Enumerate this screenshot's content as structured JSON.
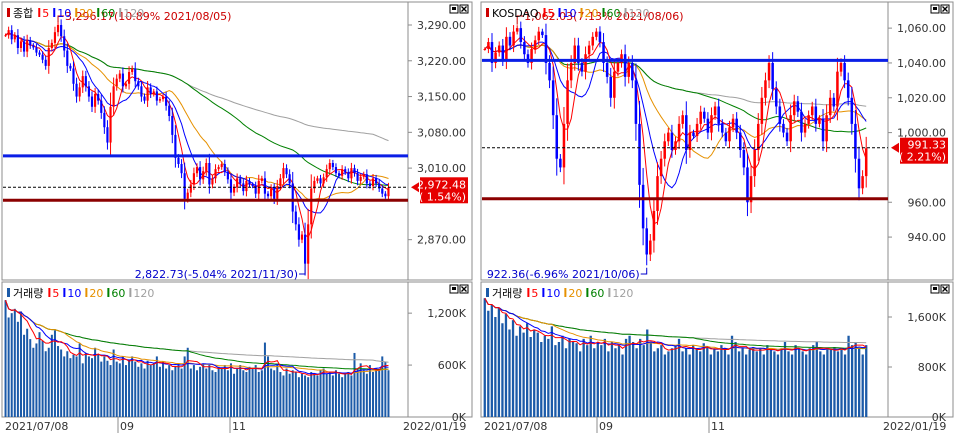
{
  "chart_data": [
    {
      "type": "candlestick",
      "name": "종합",
      "legend": [
        {
          "label": "5",
          "color": "#ff0000"
        },
        {
          "label": "10",
          "color": "#0000ff"
        },
        {
          "label": "20",
          "color": "#e69100"
        },
        {
          "label": "60",
          "color": "#008000"
        },
        {
          "label": "120",
          "color": "#a0a0a0"
        }
      ],
      "y_ticks": [
        "3,290.00",
        "3,220.00",
        "3,150.00",
        "3,080.00",
        "3,010.00",
        "2,870.00"
      ],
      "y_tick_values": [
        3290,
        3220,
        3150,
        3080,
        3010,
        2870
      ],
      "ylim": [
        2795,
        3335
      ],
      "current_price": "2,972.48",
      "current_change": "( 1.54%)",
      "current_value": 2972.48,
      "high_label": "3,296.17(10.89% 2021/08/05)",
      "low_label": "2,822.73(-5.04% 2021/11/30)",
      "high": 3296.17,
      "low": 2822.73,
      "support_line": 2947,
      "resistance_line": 3034,
      "close": [
        3270,
        3280,
        3262,
        3270,
        3245,
        3258,
        3238,
        3260,
        3250,
        3246,
        3236,
        3232,
        3222,
        3210,
        3245,
        3255,
        3276,
        3290,
        3268,
        3240,
        3210,
        3205,
        3175,
        3150,
        3168,
        3190,
        3170,
        3150,
        3130,
        3155,
        3142,
        3118,
        3090,
        3060,
        3130,
        3170,
        3185,
        3195,
        3170,
        3175,
        3198,
        3205,
        3180,
        3170,
        3150,
        3142,
        3168,
        3155,
        3160,
        3142,
        3145,
        3150,
        3132,
        3112,
        3075,
        3030,
        3018,
        3000,
        2950,
        2962,
        2978,
        3000,
        3012,
        2988,
        3004,
        3020,
        2978,
        2990,
        3008,
        3012,
        3018,
        3003,
        2988,
        2962,
        2972,
        2990,
        2980,
        2965,
        2985,
        2978,
        2975,
        2960,
        2985,
        2990,
        2960,
        2955,
        2970,
        2950,
        2975,
        2990,
        3010,
        2998,
        2980,
        2925,
        2900,
        2870,
        2880,
        2823,
        2900,
        2970,
        2985,
        2990,
        2980,
        2992,
        3008,
        3020,
        3012,
        3000,
        2995,
        3008,
        3002,
        2990,
        3010,
        3000,
        2985,
        2993,
        2998,
        2980,
        2975,
        2990,
        2980,
        2970,
        2960,
        2955,
        2972
      ]
    },
    {
      "type": "candlestick",
      "name": "KOSDAQ",
      "legend": [
        {
          "label": "5",
          "color": "#ff0000"
        },
        {
          "label": "10",
          "color": "#0000ff"
        },
        {
          "label": "20",
          "color": "#e69100"
        },
        {
          "label": "60",
          "color": "#008000"
        },
        {
          "label": "120",
          "color": "#a0a0a0"
        }
      ],
      "y_ticks": [
        "1,060.00",
        "1,040.00",
        "1,020.00",
        "1,000.00",
        "960.00",
        "940.00"
      ],
      "y_tick_values": [
        1060,
        1040,
        1020,
        1000,
        960,
        940
      ],
      "ylim": [
        916.5,
        1075
      ],
      "current_price": "991.33",
      "current_change": "( 2.21%)",
      "current_value": 991.33,
      "high_label": "1,062.03(7.13% 2021/08/06)",
      "low_label": "922.36(-6.96% 2021/10/06)",
      "high": 1062.03,
      "low": 922.36,
      "support_line": 962,
      "resistance_line": 1041.5,
      "close": [
        1048,
        1052,
        1040,
        1046,
        1050,
        1042,
        1055,
        1050,
        1058,
        1060,
        1052,
        1045,
        1040,
        1048,
        1053,
        1058,
        1056,
        1040,
        1030,
        1010,
        985,
        980,
        1005,
        1030,
        1040,
        1050,
        1040,
        1035,
        1045,
        1050,
        1055,
        1058,
        1052,
        1040,
        1032,
        1020,
        1035,
        1040,
        1045,
        1032,
        1040,
        1030,
        1005,
        970,
        945,
        930,
        938,
        955,
        975,
        985,
        995,
        1000,
        990,
        995,
        1005,
        1010,
        990,
        1000,
        998,
        1005,
        1012,
        1008,
        1000,
        1010,
        1015,
        1005,
        1000,
        995,
        1003,
        1008,
        1000,
        990,
        980,
        960,
        975,
        990,
        1005,
        1020,
        1030,
        1040,
        1025,
        1015,
        1005,
        1000,
        995,
        1010,
        1018,
        1012,
        1000,
        1005,
        1010,
        1015,
        1005,
        1008,
        995,
        1010,
        1020,
        1015,
        1035,
        1040,
        1030,
        1020,
        1005,
        985,
        968,
        975,
        991
      ]
    },
    {
      "type": "bar",
      "name": "거래량",
      "legend": [
        {
          "label": "5",
          "color": "#ff0000"
        },
        {
          "label": "10",
          "color": "#0000ff"
        },
        {
          "label": "20",
          "color": "#e69100"
        },
        {
          "label": "60",
          "color": "#008000"
        },
        {
          "label": "120",
          "color": "#a0a0a0"
        }
      ],
      "y_ticks": [
        "1,200K",
        "600K",
        "0K"
      ],
      "y_tick_values": [
        1200,
        600,
        0
      ],
      "ylim": [
        0,
        1560
      ],
      "values": [
        1350,
        1150,
        1200,
        1250,
        1100,
        1220,
        950,
        1020,
        900,
        800,
        850,
        980,
        880,
        760,
        800,
        950,
        1000,
        820,
        780,
        700,
        760,
        680,
        720,
        700,
        850,
        620,
        740,
        700,
        680,
        800,
        720,
        640,
        700,
        650,
        600,
        780,
        640,
        620,
        700,
        600,
        660,
        700,
        640,
        580,
        620,
        560,
        650,
        600,
        620,
        700,
        580,
        640,
        560,
        600,
        540,
        580,
        620,
        560,
        700,
        800,
        560,
        600,
        540,
        580,
        620,
        560,
        600,
        540,
        520,
        580,
        560,
        600,
        540,
        620,
        500,
        560,
        600,
        540,
        520,
        580,
        560,
        600,
        520,
        540,
        860,
        700,
        560,
        540,
        600,
        520,
        480,
        560,
        500,
        540,
        520,
        460,
        500,
        480,
        460,
        520,
        500,
        480,
        540,
        560,
        500,
        520,
        480,
        540,
        500,
        460,
        500,
        520,
        480,
        740,
        560,
        620,
        540,
        500,
        600,
        520,
        560,
        540,
        700,
        640,
        540
      ]
    },
    {
      "type": "bar",
      "name": "거래량",
      "legend": [
        {
          "label": "5",
          "color": "#ff0000"
        },
        {
          "label": "10",
          "color": "#0000ff"
        },
        {
          "label": "20",
          "color": "#e69100"
        },
        {
          "label": "60",
          "color": "#008000"
        },
        {
          "label": "120",
          "color": "#a0a0a0"
        }
      ],
      "y_ticks": [
        "1,600K",
        "800K",
        "0K"
      ],
      "y_tick_values": [
        1600,
        800,
        0
      ],
      "ylim": [
        0,
        2160
      ],
      "values": [
        1900,
        1700,
        1800,
        1600,
        1750,
        1500,
        1650,
        1400,
        1550,
        1300,
        1450,
        1350,
        1500,
        1280,
        1400,
        1350,
        1200,
        1300,
        1250,
        1450,
        1150,
        1200,
        1300,
        1100,
        1250,
        1200,
        1180,
        1050,
        1250,
        1150,
        1300,
        1100,
        1200,
        1150,
        1250,
        1050,
        1200,
        1100,
        1150,
        1000,
        1250,
        1300,
        1200,
        1100,
        1250,
        1150,
        1400,
        1200,
        1050,
        1100,
        1150,
        1000,
        1050,
        1100,
        1150,
        1250,
        1050,
        1100,
        1000,
        1150,
        1100,
        1050,
        1180,
        1120,
        1000,
        1100,
        1050,
        1150,
        1100,
        1000,
        1300,
        1200,
        1050,
        1100,
        1000,
        1080,
        1120,
        1050,
        1100,
        1000,
        1150,
        1100,
        1050,
        1000,
        1100,
        1200,
        1050,
        1000,
        1150,
        1100,
        1050,
        1000,
        1100,
        1150,
        1200,
        1050,
        1000,
        1100,
        1080,
        1120,
        1050,
        1100,
        1000,
        1300,
        1150,
        1200,
        1100,
        1000,
        1150
      ]
    }
  ],
  "x_axis": {
    "left": [
      "2021/07/08",
      "09",
      "11",
      "2022/01/19"
    ],
    "right": [
      "2021/07/08",
      "09",
      "11",
      "2022/01/19"
    ]
  },
  "window_controls": {
    "restore": "□",
    "close": "✕"
  }
}
